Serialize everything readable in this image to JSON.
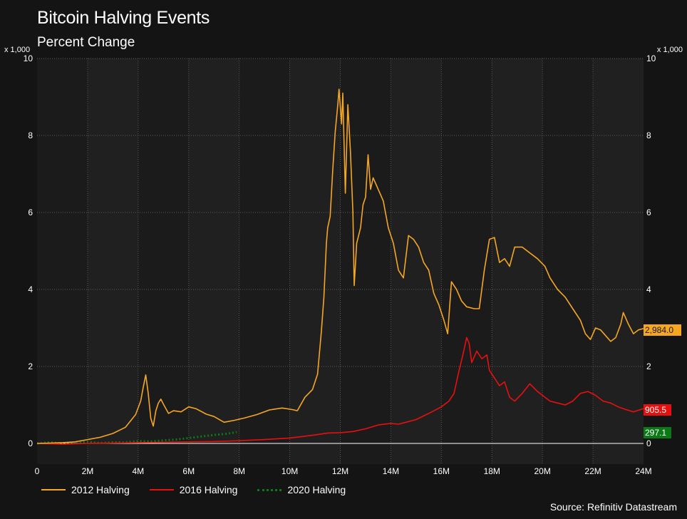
{
  "header": {
    "title": "Bitcoin Halving Events",
    "subtitle": "Percent Change",
    "unit_left": "x 1,000",
    "unit_right": "x 1,000"
  },
  "source": "Source: Refinitiv Datastream",
  "colors": {
    "background": "#141414",
    "plot_band_dark": "#1b1b1b",
    "plot_band_light": "#202020",
    "grid": "#5a5a5a",
    "zero_line": "#ffffff",
    "series_2012": "#f5a623",
    "series_2016": "#e8100f",
    "series_2020": "#0b7a16"
  },
  "chart_data": {
    "type": "line",
    "title": "Bitcoin Halving Events",
    "subtitle": "Percent Change",
    "xlabel": "",
    "ylabel": "x 1,000",
    "xlim": [
      0,
      24
    ],
    "ylim": [
      -0.5,
      10
    ],
    "x_ticks": [
      0,
      2,
      4,
      6,
      8,
      10,
      12,
      14,
      16,
      18,
      20,
      22,
      24
    ],
    "x_tick_labels": [
      "0",
      "2M",
      "4M",
      "6M",
      "8M",
      "10M",
      "12M",
      "14M",
      "16M",
      "18M",
      "20M",
      "22M",
      "24M"
    ],
    "y_ticks": [
      0,
      2,
      4,
      6,
      8,
      10
    ],
    "y_tick_labels": [
      "0",
      "2",
      "4",
      "6",
      "8",
      "10"
    ],
    "grid": true,
    "legend_position": "bottom-left",
    "series": [
      {
        "name": "2012 Halving",
        "style": "solid",
        "color": "#f5a623",
        "end_label": "2,984.0",
        "points": [
          [
            0,
            0
          ],
          [
            0.5,
            0.01
          ],
          [
            1.0,
            0.02
          ],
          [
            1.5,
            0.04
          ],
          [
            2.0,
            0.1
          ],
          [
            2.5,
            0.16
          ],
          [
            3.0,
            0.26
          ],
          [
            3.5,
            0.42
          ],
          [
            3.9,
            0.75
          ],
          [
            4.1,
            1.1
          ],
          [
            4.2,
            1.45
          ],
          [
            4.3,
            1.78
          ],
          [
            4.4,
            1.3
          ],
          [
            4.5,
            0.65
          ],
          [
            4.6,
            0.45
          ],
          [
            4.7,
            0.85
          ],
          [
            4.8,
            1.05
          ],
          [
            4.9,
            1.15
          ],
          [
            5.0,
            1.02
          ],
          [
            5.2,
            0.78
          ],
          [
            5.4,
            0.85
          ],
          [
            5.7,
            0.82
          ],
          [
            6.0,
            0.95
          ],
          [
            6.3,
            0.9
          ],
          [
            6.7,
            0.76
          ],
          [
            7.0,
            0.7
          ],
          [
            7.4,
            0.55
          ],
          [
            7.8,
            0.6
          ],
          [
            8.2,
            0.66
          ],
          [
            8.7,
            0.75
          ],
          [
            9.2,
            0.87
          ],
          [
            9.7,
            0.92
          ],
          [
            10.1,
            0.88
          ],
          [
            10.3,
            0.85
          ],
          [
            10.6,
            1.2
          ],
          [
            10.9,
            1.4
          ],
          [
            11.1,
            1.8
          ],
          [
            11.25,
            2.9
          ],
          [
            11.35,
            3.8
          ],
          [
            11.45,
            5.2
          ],
          [
            11.5,
            5.6
          ],
          [
            11.6,
            5.9
          ],
          [
            11.7,
            7.1
          ],
          [
            11.8,
            8.1
          ],
          [
            11.9,
            8.8
          ],
          [
            11.95,
            9.2
          ],
          [
            12.05,
            8.3
          ],
          [
            12.1,
            9.1
          ],
          [
            12.2,
            6.5
          ],
          [
            12.3,
            8.8
          ],
          [
            12.4,
            7.6
          ],
          [
            12.5,
            6.0
          ],
          [
            12.55,
            4.1
          ],
          [
            12.65,
            5.2
          ],
          [
            12.8,
            5.6
          ],
          [
            12.9,
            6.2
          ],
          [
            13.0,
            6.4
          ],
          [
            13.1,
            7.5
          ],
          [
            13.2,
            6.6
          ],
          [
            13.3,
            6.9
          ],
          [
            13.5,
            6.6
          ],
          [
            13.7,
            6.3
          ],
          [
            13.9,
            5.6
          ],
          [
            14.1,
            5.2
          ],
          [
            14.3,
            4.5
          ],
          [
            14.5,
            4.3
          ],
          [
            14.7,
            5.4
          ],
          [
            14.9,
            5.3
          ],
          [
            15.1,
            5.1
          ],
          [
            15.3,
            4.7
          ],
          [
            15.5,
            4.5
          ],
          [
            15.7,
            3.9
          ],
          [
            15.9,
            3.6
          ],
          [
            16.1,
            3.2
          ],
          [
            16.25,
            2.85
          ],
          [
            16.4,
            4.2
          ],
          [
            16.6,
            4.0
          ],
          [
            16.8,
            3.7
          ],
          [
            17.0,
            3.55
          ],
          [
            17.3,
            3.5
          ],
          [
            17.5,
            3.5
          ],
          [
            17.7,
            4.5
          ],
          [
            17.9,
            5.3
          ],
          [
            18.1,
            5.35
          ],
          [
            18.3,
            4.7
          ],
          [
            18.5,
            4.8
          ],
          [
            18.7,
            4.6
          ],
          [
            18.9,
            5.1
          ],
          [
            19.2,
            5.1
          ],
          [
            19.5,
            4.95
          ],
          [
            19.8,
            4.8
          ],
          [
            20.1,
            4.6
          ],
          [
            20.3,
            4.3
          ],
          [
            20.6,
            4.0
          ],
          [
            20.9,
            3.8
          ],
          [
            21.2,
            3.5
          ],
          [
            21.5,
            3.2
          ],
          [
            21.7,
            2.85
          ],
          [
            21.9,
            2.7
          ],
          [
            22.1,
            3.0
          ],
          [
            22.3,
            2.95
          ],
          [
            22.5,
            2.8
          ],
          [
            22.7,
            2.65
          ],
          [
            22.9,
            2.75
          ],
          [
            23.1,
            3.1
          ],
          [
            23.2,
            3.4
          ],
          [
            23.4,
            3.1
          ],
          [
            23.6,
            2.85
          ],
          [
            23.8,
            2.95
          ],
          [
            24.0,
            2.984
          ]
        ]
      },
      {
        "name": "2016 Halving",
        "style": "solid",
        "color": "#e8100f",
        "end_label": "905.5",
        "points": [
          [
            0,
            0
          ],
          [
            1.0,
            -0.02
          ],
          [
            2.0,
            0.0
          ],
          [
            3.0,
            0.01
          ],
          [
            4.0,
            0.02
          ],
          [
            5.0,
            0.03
          ],
          [
            6.0,
            0.04
          ],
          [
            7.0,
            0.05
          ],
          [
            8.0,
            0.07
          ],
          [
            9.0,
            0.1
          ],
          [
            10.0,
            0.14
          ],
          [
            10.5,
            0.18
          ],
          [
            11.0,
            0.22
          ],
          [
            11.5,
            0.27
          ],
          [
            12.0,
            0.28
          ],
          [
            12.5,
            0.31
          ],
          [
            13.0,
            0.38
          ],
          [
            13.5,
            0.48
          ],
          [
            14.0,
            0.52
          ],
          [
            14.3,
            0.5
          ],
          [
            14.6,
            0.55
          ],
          [
            15.0,
            0.62
          ],
          [
            15.5,
            0.78
          ],
          [
            16.0,
            0.95
          ],
          [
            16.3,
            1.1
          ],
          [
            16.5,
            1.3
          ],
          [
            16.7,
            1.9
          ],
          [
            16.85,
            2.3
          ],
          [
            17.0,
            2.75
          ],
          [
            17.1,
            2.6
          ],
          [
            17.2,
            2.1
          ],
          [
            17.4,
            2.4
          ],
          [
            17.6,
            2.2
          ],
          [
            17.8,
            2.3
          ],
          [
            17.9,
            1.9
          ],
          [
            18.1,
            1.7
          ],
          [
            18.3,
            1.5
          ],
          [
            18.5,
            1.6
          ],
          [
            18.7,
            1.2
          ],
          [
            18.9,
            1.1
          ],
          [
            19.2,
            1.3
          ],
          [
            19.5,
            1.55
          ],
          [
            19.8,
            1.35
          ],
          [
            20.1,
            1.2
          ],
          [
            20.3,
            1.1
          ],
          [
            20.6,
            1.05
          ],
          [
            20.9,
            1.0
          ],
          [
            21.2,
            1.1
          ],
          [
            21.5,
            1.3
          ],
          [
            21.8,
            1.35
          ],
          [
            22.1,
            1.25
          ],
          [
            22.4,
            1.1
          ],
          [
            22.7,
            1.05
          ],
          [
            23.0,
            0.95
          ],
          [
            23.3,
            0.88
          ],
          [
            23.6,
            0.82
          ],
          [
            24.0,
            0.9055
          ]
        ]
      },
      {
        "name": "2020 Halving",
        "style": "dotted",
        "color": "#0b7a16",
        "end_label": "297.1",
        "points": [
          [
            0,
            0
          ],
          [
            0.5,
            0.03
          ],
          [
            1.0,
            0.0
          ],
          [
            1.5,
            0.02
          ],
          [
            2.0,
            0.04
          ],
          [
            2.5,
            0.01
          ],
          [
            3.0,
            0.03
          ],
          [
            3.5,
            0.03
          ],
          [
            4.0,
            0.06
          ],
          [
            4.5,
            0.05
          ],
          [
            5.0,
            0.08
          ],
          [
            5.5,
            0.1
          ],
          [
            6.0,
            0.14
          ],
          [
            6.5,
            0.18
          ],
          [
            7.0,
            0.22
          ],
          [
            7.5,
            0.25
          ],
          [
            7.9,
            0.297
          ]
        ]
      }
    ]
  }
}
